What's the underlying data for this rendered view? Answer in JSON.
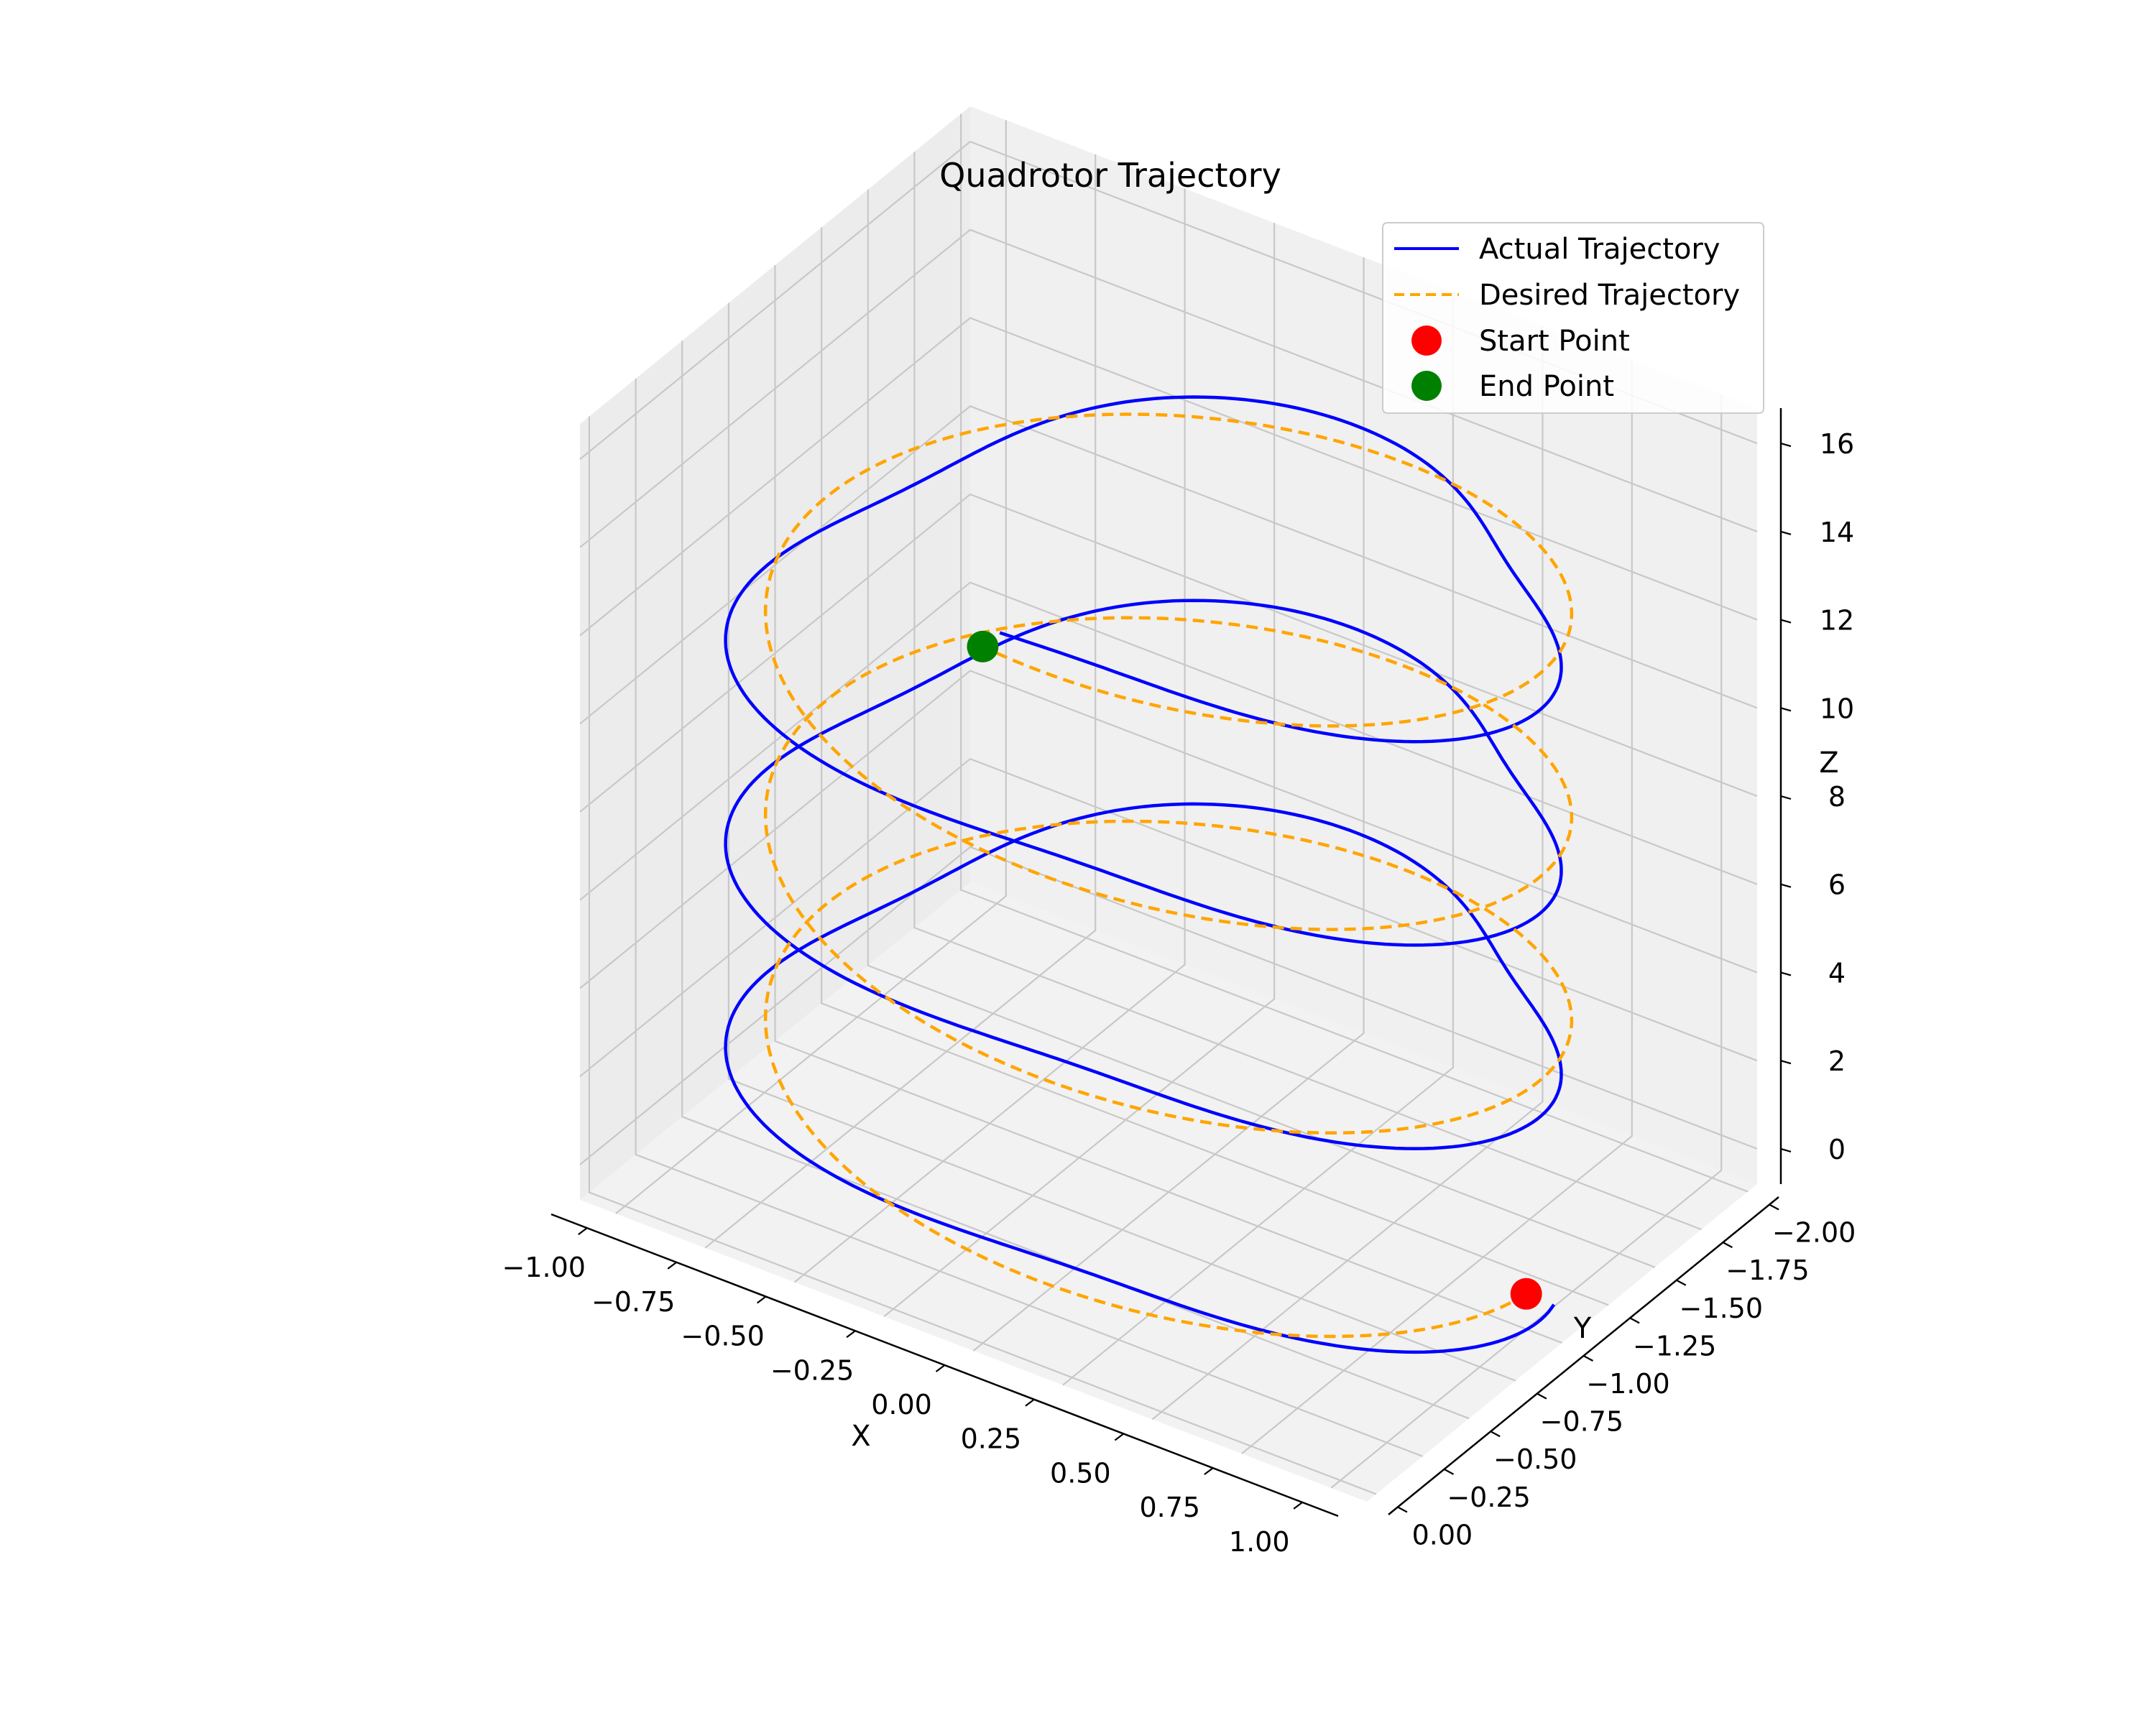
{
  "chart_data": {
    "type": "line",
    "projection": "3d",
    "title": "Quadrotor Trajectory",
    "xlabel": "X",
    "ylabel": "Y",
    "zlabel": "Z",
    "xlim": [
      -1.1,
      1.1
    ],
    "ylim": [
      -2.05,
      0.05
    ],
    "zlim": [
      -0.8,
      16.8
    ],
    "xticks": [
      -1.0,
      -0.75,
      -0.5,
      -0.25,
      0.0,
      0.25,
      0.5,
      0.75,
      1.0
    ],
    "xtick_labels": [
      "−1.00",
      "−0.75",
      "−0.50",
      "−0.25",
      "0.00",
      "0.25",
      "0.50",
      "0.75",
      "1.00"
    ],
    "yticks": [
      0.0,
      -0.25,
      -0.5,
      -0.75,
      -1.0,
      -1.25,
      -1.5,
      -1.75,
      -2.0
    ],
    "ytick_labels": [
      "0.00",
      "−0.25",
      "−0.50",
      "−0.75",
      "−1.00",
      "−1.25",
      "−1.50",
      "−1.75",
      "−2.00"
    ],
    "zticks": [
      0,
      2,
      4,
      6,
      8,
      10,
      12,
      14,
      16
    ],
    "ztick_labels": [
      "0",
      "2",
      "4",
      "6",
      "8",
      "10",
      "12",
      "14",
      "16"
    ],
    "grid": true,
    "legend_position": "top-right",
    "series": [
      {
        "name": "Actual Trajectory",
        "style": "solid",
        "color": "#0000ff",
        "center_x": 0.0,
        "center_y": -1.0,
        "radius_mean": 1.0,
        "radius_wobble": 0.12,
        "wobble_freq": 3,
        "z_start": 0.0,
        "z_end": 15.0,
        "theta_start": 0.0,
        "turns": 3.25
      },
      {
        "name": "Desired Trajectory",
        "style": "dashed",
        "color": "#ffa500",
        "center_x": 0.0,
        "center_y": -1.0,
        "radius_mean": 1.0,
        "radius_wobble": 0.0,
        "wobble_freq": 0,
        "z_start": 0.0,
        "z_end": 15.0,
        "theta_start": 0.0,
        "turns": 3.25
      }
    ],
    "markers": [
      {
        "name": "Start Point",
        "color": "#ff0000",
        "x": 1.0,
        "y": -1.0,
        "z": 0.0
      },
      {
        "name": "End Point",
        "color": "#008000",
        "x": 0.0,
        "y": 0.0,
        "z": 15.0
      }
    ]
  }
}
